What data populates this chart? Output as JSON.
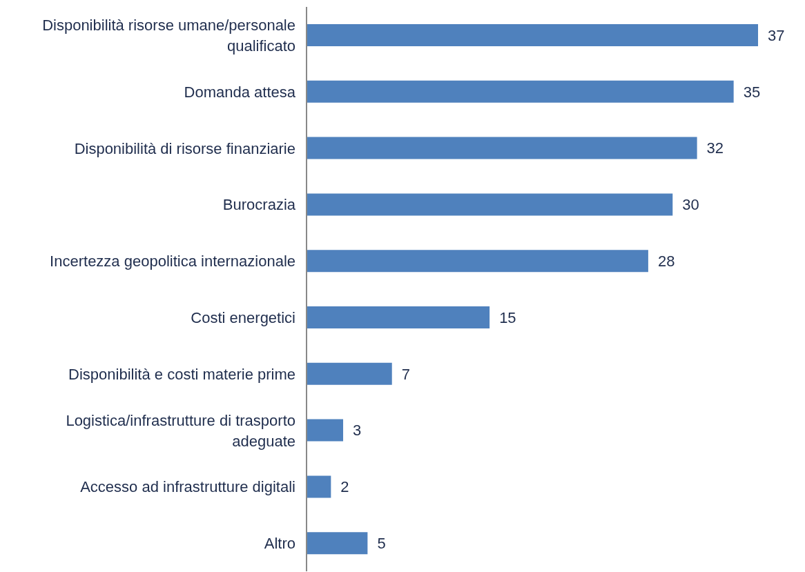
{
  "chart_data": {
    "type": "bar",
    "orientation": "horizontal",
    "categories": [
      "Disponibilità risorse umane/personale qualificato",
      "Domanda attesa",
      "Disponibilità di risorse finanziarie",
      "Burocrazia",
      "Incertezza geopolitica internazionale",
      "Costi energetici",
      "Disponibilità e costi materie prime",
      "Logistica/infrastrutture di trasporto adeguate",
      "Accesso ad infrastrutture digitali",
      "Altro"
    ],
    "values": [
      37,
      35,
      32,
      30,
      28,
      15,
      7,
      3,
      2,
      5
    ],
    "color": "#4f81bd",
    "data_labels": true,
    "grid": false,
    "legend": false
  }
}
